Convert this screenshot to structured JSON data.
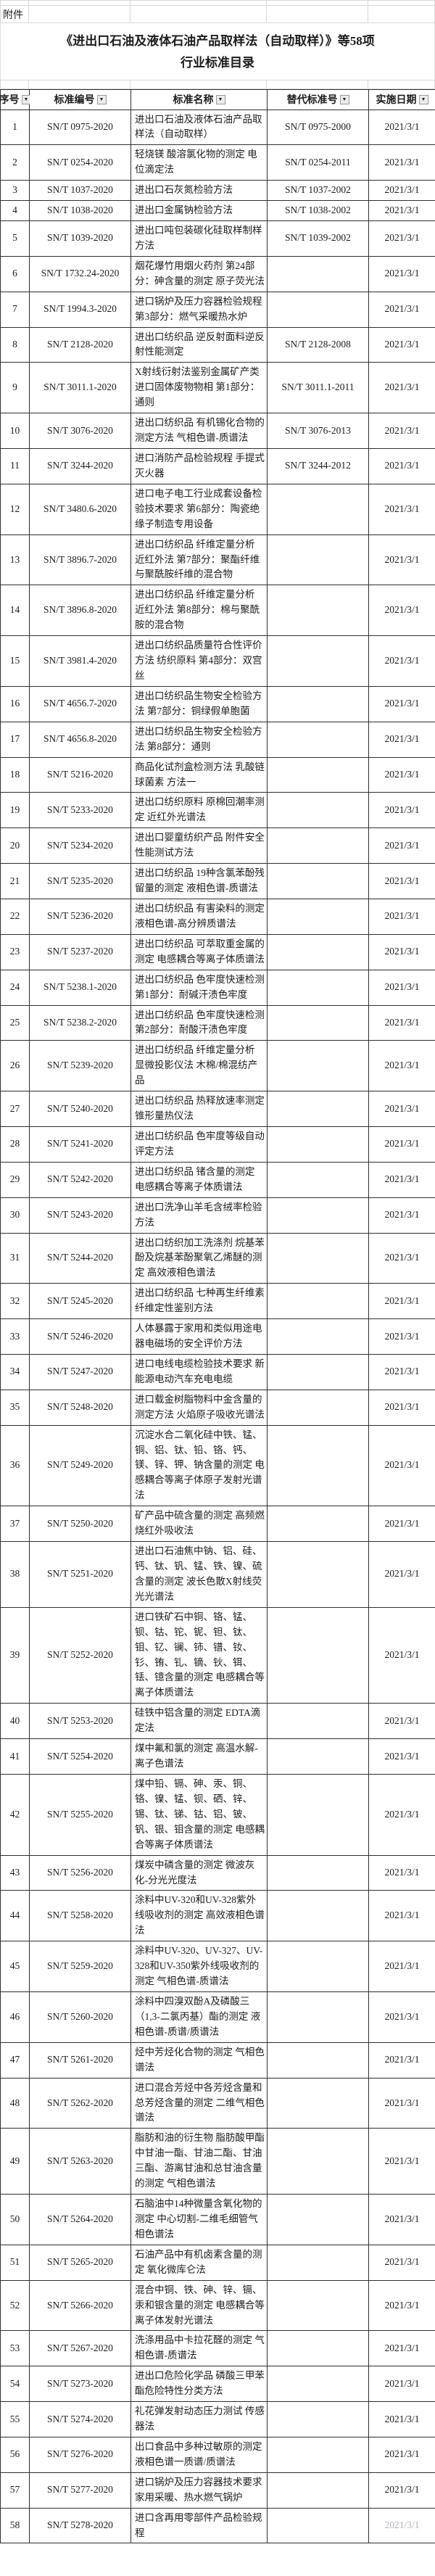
{
  "attachment_label": "附件",
  "title": {
    "line1": "《进出口石油及液体石油产品取样法（自动取样）》等58项",
    "line2": "行业标准目录"
  },
  "table": {
    "columns": [
      "序号",
      "标准编号",
      "标准名称",
      "替代标准号",
      "实施日期"
    ],
    "rows": [
      {
        "no": "1",
        "code": "SN/T 0975-2020",
        "name": "进出口石油及液体石油产品取样法（自动取样）",
        "replaces": "SN/T 0975-2000",
        "date": "2021/3/1"
      },
      {
        "no": "2",
        "code": "SN/T 0254-2020",
        "name": "轻烧镁 酸溶氯化物的测定 电位滴定法",
        "replaces": "SN/T 0254-2011",
        "date": "2021/3/1"
      },
      {
        "no": "3",
        "code": "SN/T 1037-2020",
        "name": "进出口石灰氮检验方法",
        "replaces": "SN/T 1037-2002",
        "date": "2021/3/1"
      },
      {
        "no": "4",
        "code": "SN/T 1038-2020",
        "name": "进出口金属钠检验方法",
        "replaces": "SN/T 1038-2002",
        "date": "2021/3/1"
      },
      {
        "no": "5",
        "code": "SN/T 1039-2020",
        "name": "进出口吨包装碳化硅取样制样方法",
        "replaces": "SN/T 1039-2002",
        "date": "2021/3/1"
      },
      {
        "no": "6",
        "code": "SN/T 1732.24-2020",
        "name": "烟花爆竹用烟火药剂 第24部分：砷含量的测定 原子荧光法",
        "replaces": "",
        "date": "2021/3/1"
      },
      {
        "no": "7",
        "code": "SN/T 1994.3-2020",
        "name": "进口锅炉及压力容器检验规程 第3部分：燃气采暖热水炉",
        "replaces": "",
        "date": "2021/3/1"
      },
      {
        "no": "8",
        "code": "SN/T 2128-2020",
        "name": "进出口纺织品 逆反射面料逆反射性能测定",
        "replaces": "SN/T 2128-2008",
        "date": "2021/3/1"
      },
      {
        "no": "9",
        "code": "SN/T 3011.1-2020",
        "name": "X射线衍射法鉴别金属矿产类进口固体废物物相 第1部分：通则",
        "replaces": "SN/T 3011.1-2011",
        "date": "2021/3/1"
      },
      {
        "no": "10",
        "code": "SN/T 3076-2020",
        "name": "进出口纺织品 有机锡化合物的测定方法 气相色谱-质谱法",
        "replaces": "SN/T 3076-2013",
        "date": "2021/3/1"
      },
      {
        "no": "11",
        "code": "SN/T 3244-2020",
        "name": "进口消防产品检验规程 手提式灭火器",
        "replaces": "SN/T 3244-2012",
        "date": "2021/3/1"
      },
      {
        "no": "12",
        "code": "SN/T 3480.6-2020",
        "name": "进口电子电工行业成套设备检验技术要求  第6部分：陶瓷绝缘子制造专用设备",
        "replaces": "",
        "date": "2021/3/1"
      },
      {
        "no": "13",
        "code": "SN/T 3896.7-2020",
        "name": "进出口纺织品 纤维定量分析 近红外法 第7部分：聚酯纤维与聚酰胺纤维的混合物",
        "replaces": "",
        "date": "2021/3/1"
      },
      {
        "no": "14",
        "code": "SN/T 3896.8-2020",
        "name": "进出口纺织品 纤维定量分析 近红外法 第8部分：棉与聚酰胺的混合物",
        "replaces": "",
        "date": "2021/3/1"
      },
      {
        "no": "15",
        "code": "SN/T 3981.4-2020",
        "name": "进出口纺织品质量符合性评价方法 纺织原料 第4部分：双宫丝",
        "replaces": "",
        "date": "2021/3/1"
      },
      {
        "no": "16",
        "code": "SN/T 4656.7-2020",
        "name": "进出口纺织品生物安全检验方法 第7部分：铜绿假单胞菌",
        "replaces": "",
        "date": "2021/3/1"
      },
      {
        "no": "17",
        "code": "SN/T 4656.8-2020",
        "name": "进出口纺织品生物安全检验方法 第8部分：通则",
        "replaces": "",
        "date": "2021/3/1"
      },
      {
        "no": "18",
        "code": "SN/T 5216-2020",
        "name": "商品化试剂盒检测方法 乳酸链球菌素 方法一",
        "replaces": "",
        "date": "2021/3/1"
      },
      {
        "no": "19",
        "code": "SN/T 5233-2020",
        "name": "进出口纺织原料 原棉回潮率测定 近红外光谱法",
        "replaces": "",
        "date": "2021/3/1"
      },
      {
        "no": "20",
        "code": "SN/T 5234-2020",
        "name": "进出口婴童纺织产品 附件安全性能测试方法",
        "replaces": "",
        "date": "2021/3/1"
      },
      {
        "no": "21",
        "code": "SN/T 5235-2020",
        "name": "进出口纺织品 19种含氯苯酚残留量的测定 液相色谱-质谱法",
        "replaces": "",
        "date": "2021/3/1"
      },
      {
        "no": "22",
        "code": "SN/T 5236-2020",
        "name": "进出口纺织品 有害染料的测定 液相色谱-高分辨质谱法",
        "replaces": "",
        "date": "2021/3/1"
      },
      {
        "no": "23",
        "code": "SN/T 5237-2020",
        "name": "进出口纺织品 可萃取重金属的测定 电感耦合等离子体质谱法",
        "replaces": "",
        "date": "2021/3/1"
      },
      {
        "no": "24",
        "code": "SN/T 5238.1-2020",
        "name": "进出口纺织品 色牢度快速检测 第1部分：耐碱汗渍色牢度",
        "replaces": "",
        "date": "2021/3/1"
      },
      {
        "no": "25",
        "code": "SN/T 5238.2-2020",
        "name": "进出口纺织品 色牢度快速检测 第2部分：耐酸汗渍色牢度",
        "replaces": "",
        "date": "2021/3/1"
      },
      {
        "no": "26",
        "code": "SN/T 5239-2020",
        "name": "进出口纺织品 纤维定量分析 显微投影仪法 木棉/棉混纺产品",
        "replaces": "",
        "date": "2021/3/1"
      },
      {
        "no": "27",
        "code": "SN/T 5240-2020",
        "name": "进出口纺织品 热释放速率测定 锥形量热仪法",
        "replaces": "",
        "date": "2021/3/1"
      },
      {
        "no": "28",
        "code": "SN/T 5241-2020",
        "name": "进出口纺织品 色牢度等级自动评定方法",
        "replaces": "",
        "date": "2021/3/1"
      },
      {
        "no": "29",
        "code": "SN/T 5242-2020",
        "name": "进出口纺织品 锗含量的测定 电感耦合等离子体质谱法",
        "replaces": "",
        "date": "2021/3/1"
      },
      {
        "no": "30",
        "code": "SN/T 5243-2020",
        "name": "进出口洗净山羊毛含绒率检验方法",
        "replaces": "",
        "date": "2021/3/1"
      },
      {
        "no": "31",
        "code": "SN/T 5244-2020",
        "name": "进出口纺织加工洗涤剂 烷基苯酚及烷基苯酚聚氧乙烯醚的测定 高效液相色谱法",
        "replaces": "",
        "date": "2021/3/1"
      },
      {
        "no": "32",
        "code": "SN/T 5245-2020",
        "name": "进出口纺织品 七种再生纤维素纤维定性鉴别方法",
        "replaces": "",
        "date": "2021/3/1"
      },
      {
        "no": "33",
        "code": "SN/T 5246-2020",
        "name": "人体暴露于家用和类似用途电器电磁场的安全评价方法",
        "replaces": "",
        "date": "2021/3/1"
      },
      {
        "no": "34",
        "code": "SN/T 5247-2020",
        "name": "进口电线电缆检验技术要求 新能源电动汽车充电电缆",
        "replaces": "",
        "date": "2021/3/1"
      },
      {
        "no": "35",
        "code": "SN/T 5248-2020",
        "name": "进口载金树脂物料中金含量的测定方法 火焰原子吸收光谱法",
        "replaces": "",
        "date": "2021/3/1"
      },
      {
        "no": "36",
        "code": "SN/T 5249-2020",
        "name": "沉淀水合二氧化硅中铁、锰、铜、铝、钛、铅、铬、钙、镁、锌、钾、钠含量的测定 电感耦合等离子体原子发射光谱法",
        "replaces": "",
        "date": "2021/3/1"
      },
      {
        "no": "37",
        "code": "SN/T 5250-2020",
        "name": "矿产品中硫含量的测定 高频燃烧红外吸收法",
        "replaces": "",
        "date": "2021/3/1"
      },
      {
        "no": "38",
        "code": "SN/T 5251-2020",
        "name": "进出口石油焦中钠、铝、硅、钙、钛、钒、锰、铁、镍、硫含量的测定 波长色散X射线荧光光谱法",
        "replaces": "",
        "date": "2021/3/1"
      },
      {
        "no": "39",
        "code": "SN/T 5252-2020",
        "name": "进口铁矿石中铜、铬、锰、钡、钴、铊、铌、钽、钛、钼、钇、镧、铈、镨、钕、钐、铕、钆、镝、钬、铒、铥、镱含量的测定 电感耦合等离子体质谱法",
        "replaces": "",
        "date": "2021/3/1"
      },
      {
        "no": "40",
        "code": "SN/T 5253-2020",
        "name": "硅铁中铝含量的测定 EDTA滴定法",
        "replaces": "",
        "date": "2021/3/1"
      },
      {
        "no": "41",
        "code": "SN/T 5254-2020",
        "name": "煤中氟和氯的测定 高温水解-离子色谱法",
        "replaces": "",
        "date": "2021/3/1"
      },
      {
        "no": "42",
        "code": "SN/T 5255-2020",
        "name": "煤中铅、镉、砷、汞、铜、铬、镍、锰、钡、硒、锌、锡、钛、锑、钴、铝、铍、钒、银、钼含量的测定 电感耦合等离子体质谱法",
        "replaces": "",
        "date": "2021/3/1"
      },
      {
        "no": "43",
        "code": "SN/T 5256-2020",
        "name": "煤炭中磷含量的测定 微波灰化-分光光度法",
        "replaces": "",
        "date": "2021/3/1"
      },
      {
        "no": "44",
        "code": "SN/T 5258-2020",
        "name": "涂料中UV-320和UV-328紫外线吸收剂的测定 高效液相色谱法",
        "replaces": "",
        "date": "2021/3/1"
      },
      {
        "no": "45",
        "code": "SN/T 5259-2020",
        "name": "涂料中UV-320、UV-327、UV-328和UV-350紫外线吸收剂的测定 气相色谱-质谱法",
        "replaces": "",
        "date": "2021/3/1"
      },
      {
        "no": "46",
        "code": "SN/T 5260-2020",
        "name": "涂料中四溴双酚A及磷酸三（1,3-二氯丙基）酯的测定 液相色谱-质谱/质谱法",
        "replaces": "",
        "date": "2021/3/1"
      },
      {
        "no": "47",
        "code": "SN/T 5261-2020",
        "name": "烃中芳烃化合物的测定 气相色谱法",
        "replaces": "",
        "date": "2021/3/1"
      },
      {
        "no": "48",
        "code": "SN/T 5262-2020",
        "name": "进口混合芳烃中各芳烃含量和总芳烃含量的测定 二维气相色谱法",
        "replaces": "",
        "date": "2021/3/1"
      },
      {
        "no": "49",
        "code": "SN/T 5263-2020",
        "name": "脂肪和油的衍生物 脂肪酸甲酯中甘油一酯、甘油二酯、甘油三酯、游离甘油和总甘油含量的测定 气相色谱法",
        "replaces": "",
        "date": "2021/3/1"
      },
      {
        "no": "50",
        "code": "SN/T 5264-2020",
        "name": "石脑油中14种微量含氧化物的测定 中心切割-二维毛细管气相色谱法",
        "replaces": "",
        "date": "2021/3/1"
      },
      {
        "no": "51",
        "code": "SN/T 5265-2020",
        "name": "石油产品中有机卤素含量的测定 氧化微库仑法",
        "replaces": "",
        "date": "2021/3/1"
      },
      {
        "no": "52",
        "code": "SN/T 5266-2020",
        "name": "混合中铜、铁、砷、锌、镉、汞和银含量的测定 电感耦合等离子体发射光谱法",
        "replaces": "",
        "date": "2021/3/1"
      },
      {
        "no": "53",
        "code": "SN/T 5267-2020",
        "name": "洗涤用品中卡拉花醛的测定 气相色谱-质谱法",
        "replaces": "",
        "date": "2021/3/1"
      },
      {
        "no": "54",
        "code": "SN/T 5273-2020",
        "name": "进出口危险化学品 磷酸三甲苯酯危险特性分类方法",
        "replaces": "",
        "date": "2021/3/1"
      },
      {
        "no": "55",
        "code": "SN/T 5274-2020",
        "name": "礼花弹发射动态压力测试 传感器法",
        "replaces": "",
        "date": "2021/3/1"
      },
      {
        "no": "56",
        "code": "SN/T 5276-2020",
        "name": "出口食品中多种过敏原的测定  液相色谱一质谱/质谱法",
        "replaces": "",
        "date": "2021/3/1"
      },
      {
        "no": "57",
        "code": "SN/T 5277-2020",
        "name": "进口锅炉及压力容器技术要求 家用采暖、热水燃气锅炉",
        "replaces": "",
        "date": "2021/3/1"
      },
      {
        "no": "58",
        "code": "SN/T 5278-2020",
        "name": "进口含再用零部件产品检验规程",
        "replaces": "",
        "date": "2021/3/1",
        "faded": true
      }
    ]
  },
  "icons": {
    "filter_glyph": "▼"
  },
  "colors": {
    "grid_light": "#d9d9d9",
    "grid_dark": "#2f2f2f",
    "text": "#1c1c1c"
  }
}
